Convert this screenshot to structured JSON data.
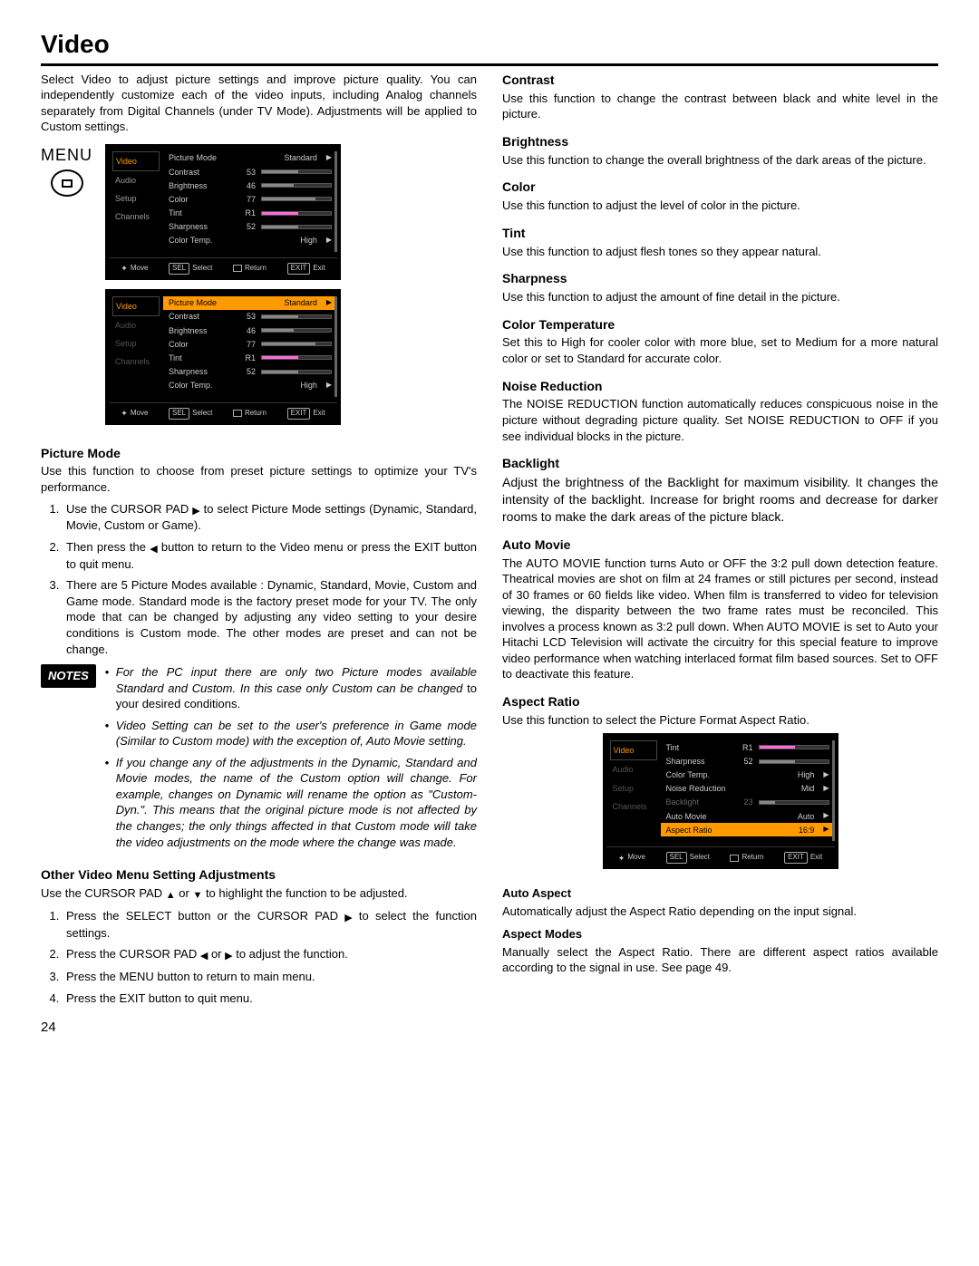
{
  "title": "Video",
  "intro": "Select Video to adjust picture settings and improve picture quality. You can independently customize each of the video inputs, including Analog channels separately from Digital Channels (under TV Mode). Adjustments will be applied to Custom settings.",
  "menu_label": "MENU",
  "colors": {
    "accent": "#ff9a00",
    "osd_bg": "#000000",
    "osd_text": "#cccccc",
    "slider_bg": "#333333",
    "slider_fill": "#888888",
    "tint_fill": "#ff6bdc"
  },
  "nav": [
    "Video",
    "Audio",
    "Setup",
    "Channels"
  ],
  "osd1": {
    "rows": [
      {
        "lbl": "Picture Mode",
        "txt": "Standard",
        "type": "text"
      },
      {
        "lbl": "Contrast",
        "val": "53",
        "pct": 53,
        "type": "slider"
      },
      {
        "lbl": "Brightness",
        "val": "46",
        "pct": 46,
        "type": "slider"
      },
      {
        "lbl": "Color",
        "val": "77",
        "pct": 77,
        "type": "slider"
      },
      {
        "lbl": "Tint",
        "val": "R1",
        "pct": 52,
        "type": "tint"
      },
      {
        "lbl": "Sharpness",
        "val": "52",
        "pct": 52,
        "type": "slider"
      },
      {
        "lbl": "Color Temp.",
        "txt": "High",
        "type": "text"
      }
    ]
  },
  "osd2": {
    "rows": [
      {
        "lbl": "Picture Mode",
        "txt": "Standard",
        "type": "text",
        "hl": true
      },
      {
        "lbl": "Contrast",
        "val": "53",
        "pct": 53,
        "type": "slider"
      },
      {
        "lbl": "Brightness",
        "val": "46",
        "pct": 46,
        "type": "slider"
      },
      {
        "lbl": "Color",
        "val": "77",
        "pct": 77,
        "type": "slider"
      },
      {
        "lbl": "Tint",
        "val": "R1",
        "pct": 52,
        "type": "tint"
      },
      {
        "lbl": "Sharpness",
        "val": "52",
        "pct": 52,
        "type": "slider"
      },
      {
        "lbl": "Color Temp.",
        "txt": "High",
        "type": "text"
      }
    ]
  },
  "osd3": {
    "rows": [
      {
        "lbl": "Tint",
        "val": "R1",
        "pct": 52,
        "type": "tint"
      },
      {
        "lbl": "Sharpness",
        "val": "52",
        "pct": 52,
        "type": "slider"
      },
      {
        "lbl": "Color Temp.",
        "txt": "High",
        "type": "text"
      },
      {
        "lbl": "Noise Reduction",
        "txt": "Mid",
        "type": "text"
      },
      {
        "lbl": "Backlight",
        "val": "23",
        "pct": 23,
        "type": "slider",
        "dim": true
      },
      {
        "lbl": "Auto Movie",
        "txt": "Auto",
        "type": "text"
      },
      {
        "lbl": "Aspect Ratio",
        "txt": "16:9",
        "type": "text",
        "hl": true
      }
    ]
  },
  "foot": {
    "move": "Move",
    "select": "Select",
    "sel": "SEL",
    "return": "Return",
    "exit": "Exit",
    "exitk": "EXIT"
  },
  "pm": {
    "h": "Picture Mode",
    "p": "Use this function to choose from preset picture settings to optimize your TV's performance.",
    "li1a": "Use the CURSOR PAD ",
    "li1b": " to select Picture Mode settings (Dynamic, Standard, Movie, Custom or Game).",
    "li2a": "Then press the ",
    "li2b": " button to return to the Video menu or press the EXIT button to quit menu.",
    "li3": "There are 5 Picture Modes available : Dynamic, Standard, Movie, Custom and Game mode. Standard mode is the factory preset mode for your TV. The only mode that can be changed by adjusting any video setting to your desire conditions is Custom mode. The other modes are preset and can not be change."
  },
  "notes_label": "NOTES",
  "notes": {
    "n1a": "For the PC input there are only two Picture modes available Standard and Custom. In this case only Custom can be changed",
    "n1b": " to your desired conditions.",
    "n2": "Video Setting can be set to the user's preference in Game mode (Similar to Custom mode) with the exception of, Auto Movie setting.",
    "n3": "If you change any of the adjustments in the Dynamic, Standard and Movie modes, the name of the Custom option will change. For example, changes on Dynamic will rename the option as \"Custom-Dyn.\". This means that the original picture mode is not affected by the changes; the only things affected in that Custom mode will take the video adjustments on the mode where the change was made."
  },
  "other": {
    "h": "Other Video Menu Setting Adjustments",
    "p1a": "Use the CURSOR PAD ",
    "p1b": " or ",
    "p1c": " to highlight the function to be adjusted.",
    "li1a": "Press the SELECT button or the CURSOR PAD ",
    "li1b": " to select the function settings.",
    "li2a": "Press the CURSOR PAD ",
    "li2b": " or ",
    "li2c": " to adjust the function.",
    "li3": "Press the MENU button to return to main menu.",
    "li4": "Press the EXIT button to quit menu."
  },
  "right": {
    "contrast": {
      "h": "Contrast",
      "p": "Use this function to change the contrast between black and white level in the picture."
    },
    "brightness": {
      "h": "Brightness",
      "p": "Use this function to change the overall brightness of the dark areas of the picture."
    },
    "color": {
      "h": "Color",
      "p": "Use this function to adjust the level of color in the picture."
    },
    "tint": {
      "h": "Tint",
      "p": "Use this function to adjust flesh tones so they appear natural."
    },
    "sharp": {
      "h": "Sharpness",
      "p": "Use this function to adjust the amount of fine detail in the picture."
    },
    "ctemp": {
      "h": "Color Temperature",
      "p": "Set this to High for cooler color with more blue, set to Medium for a more natural color or set to Standard for accurate color."
    },
    "nr": {
      "h": "Noise Reduction",
      "p": "The NOISE REDUCTION function automatically reduces conspicuous noise in the picture without degrading picture quality. Set NOISE REDUCTION to OFF if you see individual blocks in the picture."
    },
    "bl": {
      "h": "Backlight",
      "p": "Adjust the brightness of the Backlight for maximum visibility. It changes the intensity of the backlight. Increase for bright rooms and decrease for darker rooms to make the dark areas of the picture black."
    },
    "am": {
      "h": "Auto Movie",
      "p": "The AUTO MOVIE function turns Auto or OFF the 3:2 pull down detection feature. Theatrical movies are shot on film at 24 frames or still pictures per second, instead of 30 frames or 60 fields like video. When film is transferred to video for television viewing, the disparity between the two frame rates must be reconciled. This involves a process known as 3:2 pull down. When AUTO MOVIE is set to Auto your Hitachi LCD Television will activate the circuitry for this special feature to improve video performance when watching interlaced format film based sources. Set to OFF to deactivate this feature."
    },
    "ar": {
      "h": "Aspect Ratio",
      "p": "Use this function to select the Picture Format Aspect Ratio."
    },
    "aa": {
      "h": "Auto Aspect",
      "p": "Automatically adjust the Aspect Ratio depending on the input signal."
    },
    "amodes": {
      "h": "Aspect Modes",
      "p": "Manually select the Aspect Ratio. There are different aspect ratios available according to the signal in use. See page 49."
    }
  },
  "page": "24"
}
